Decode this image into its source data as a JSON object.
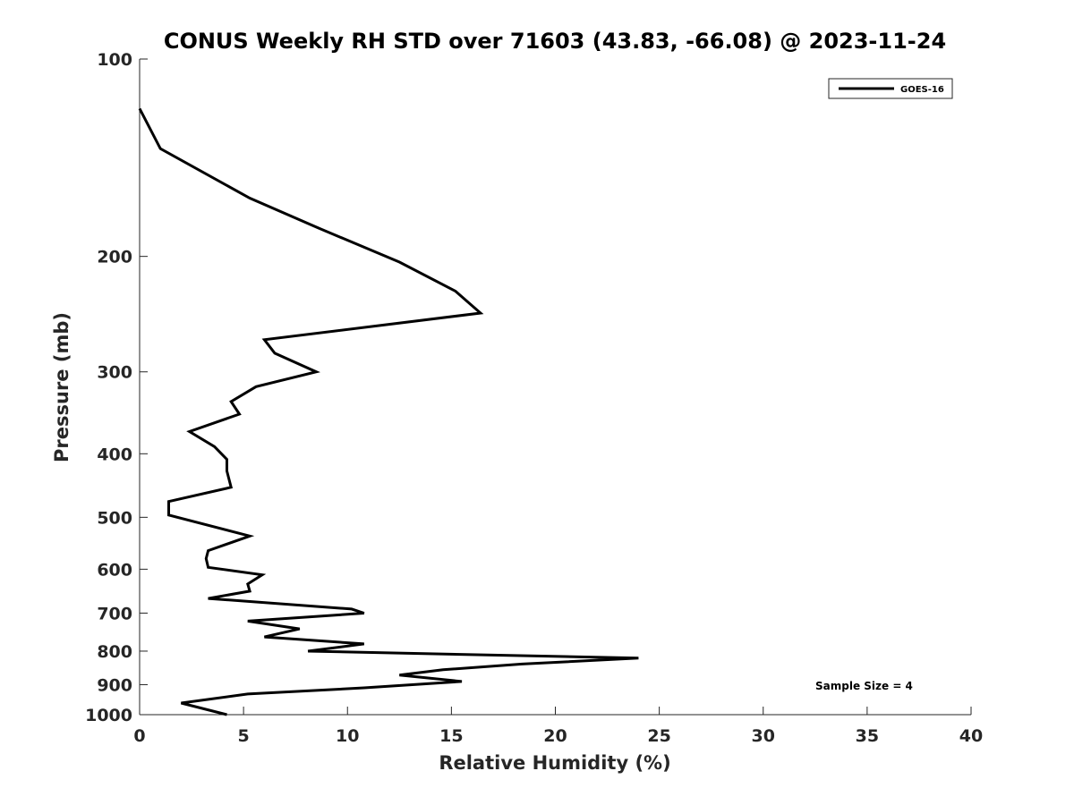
{
  "chart_data": {
    "type": "line",
    "title": "CONUS Weekly RH STD over 71603 (43.83, -66.08) @ 2023-11-24",
    "xlabel": "Relative Humidity (%)",
    "ylabel": "Pressure (mb)",
    "xlim": [
      0,
      40
    ],
    "ylim": [
      100,
      1000
    ],
    "yscale": "log",
    "y_reversed": true,
    "grid": false,
    "legend_position": "top-right",
    "x_ticks": [
      0,
      5,
      10,
      15,
      20,
      25,
      30,
      35,
      40
    ],
    "x_tick_labels": [
      "0",
      "5",
      "10",
      "15",
      "20",
      "25",
      "30",
      "35",
      "40"
    ],
    "y_ticks": [
      100,
      200,
      300,
      400,
      500,
      600,
      700,
      800,
      900,
      1000
    ],
    "y_tick_labels": [
      "100",
      "200",
      "300",
      "400",
      "500",
      "600",
      "700",
      "800",
      "900",
      "1000"
    ],
    "series": [
      {
        "name": "GOES-16",
        "color": "#000000",
        "x": [
          0.0,
          1.0,
          5.3,
          8.6,
          12.5,
          15.2,
          16.4,
          6.0,
          6.5,
          8.5,
          5.6,
          4.4,
          4.8,
          2.4,
          3.6,
          4.2,
          4.2,
          4.4,
          1.4,
          1.4,
          5.3,
          3.3,
          3.2,
          3.3,
          5.9,
          5.2,
          5.3,
          3.3,
          10.2,
          10.8,
          5.2,
          7.7,
          6.0,
          10.8,
          8.1,
          24.0,
          18.4,
          14.6,
          12.5,
          15.5,
          10.8,
          5.2,
          2.0,
          4.2
        ],
        "y": [
          119,
          137,
          163,
          181,
          204,
          226,
          244,
          268,
          281,
          300,
          316,
          333,
          348,
          370,
          390,
          408,
          425,
          450,
          473,
          496,
          534,
          562,
          578,
          596,
          612,
          632,
          648,
          665,
          690,
          700,
          720,
          740,
          761,
          780,
          800,
          820,
          837,
          854,
          870,
          890,
          910,
          930,
          960,
          1000
        ]
      }
    ],
    "annotations": [
      "Sample Size = 4"
    ]
  }
}
